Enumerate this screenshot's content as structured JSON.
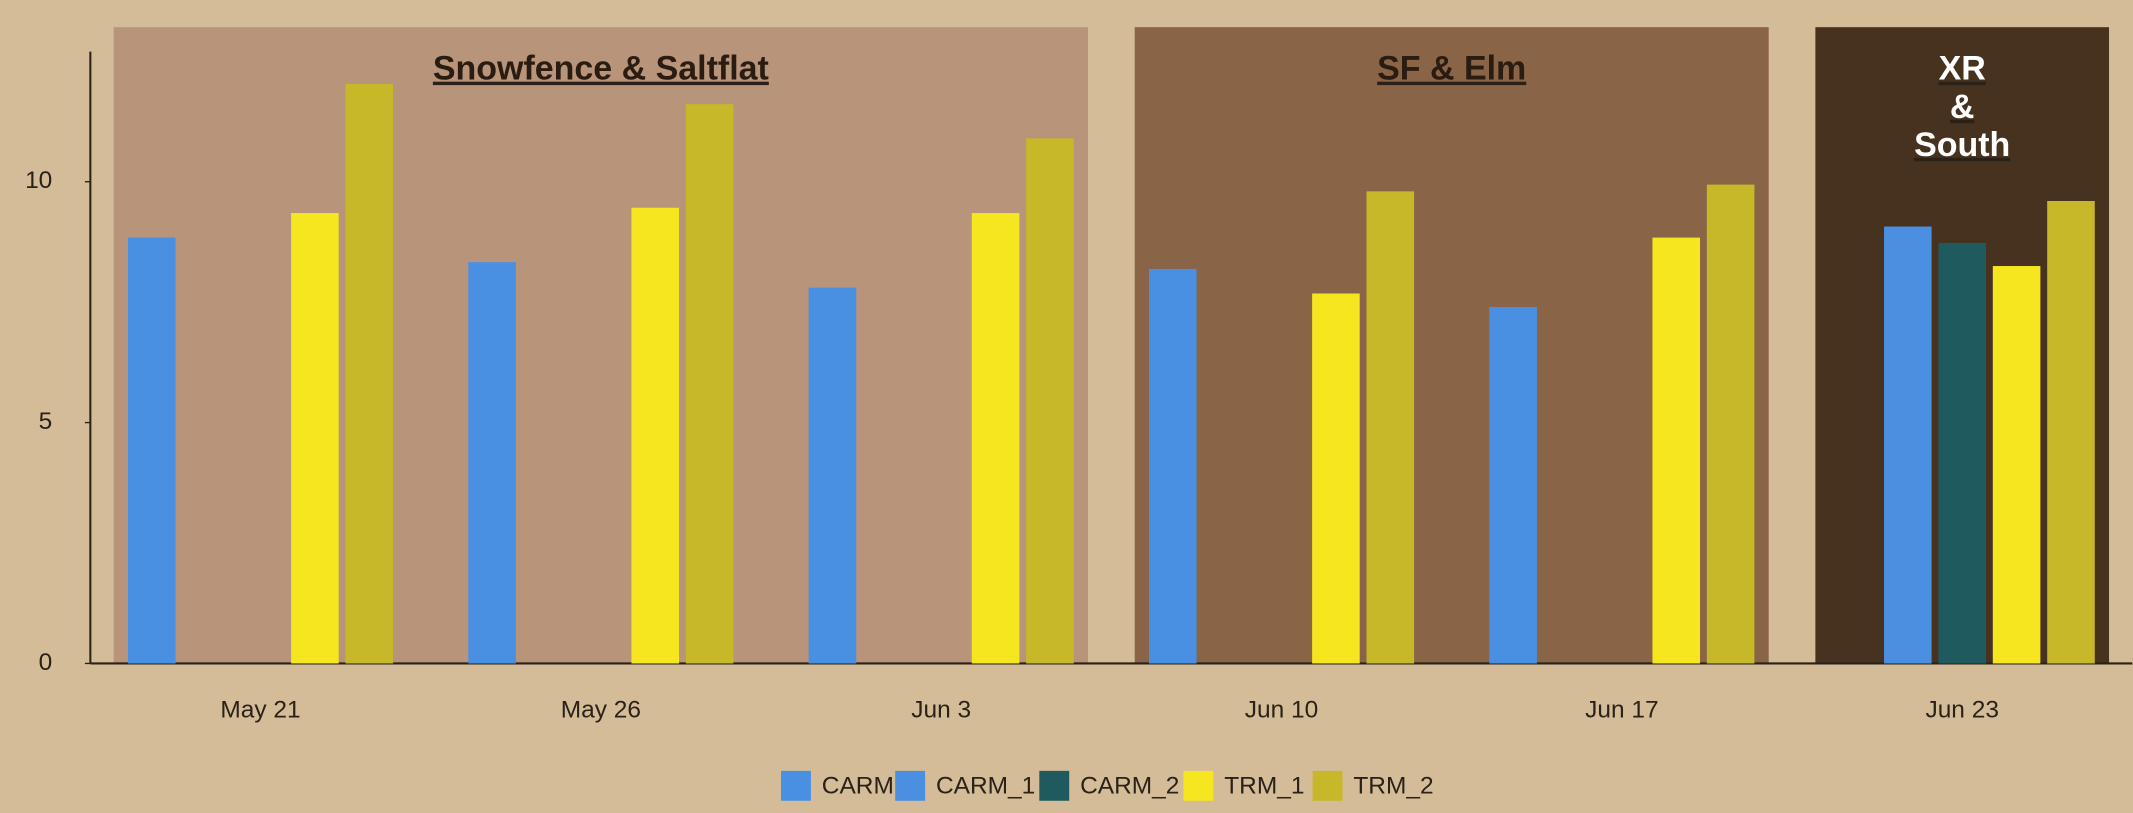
{
  "chart_data": {
    "type": "bar",
    "categories": [
      "May 21",
      "May 26",
      "Jun 3",
      "Jun 10",
      "Jun 17",
      "Jun 23"
    ],
    "series": [
      {
        "name": "CARM",
        "color": "#4a90e2",
        "values": [
          8.84,
          8.33,
          7.8,
          8.19,
          7.4,
          null
        ]
      },
      {
        "name": "CARM_1",
        "color": "#4b8fe0",
        "values": [
          null,
          null,
          null,
          null,
          null,
          9.07
        ]
      },
      {
        "name": "CARM_2",
        "color": "#1f5a5e",
        "values": [
          null,
          null,
          null,
          null,
          null,
          8.73
        ]
      },
      {
        "name": "TRM_1",
        "color": "#f6e61f",
        "values": [
          9.35,
          9.46,
          9.35,
          7.68,
          8.84,
          8.25
        ]
      },
      {
        "name": "TRM_2",
        "color": "#c7b82a",
        "values": [
          12.03,
          11.61,
          10.9,
          9.8,
          9.94,
          9.6
        ]
      }
    ],
    "regions": [
      {
        "label": [
          "Snowfence & Saltflat"
        ],
        "start": "May 21",
        "end": "Jun 3",
        "color": "#b8947a",
        "label_color": "#2a1c10"
      },
      {
        "label": [
          "SF & Elm"
        ],
        "start": "Jun 10",
        "end": "Jun 17",
        "color": "#8a6446",
        "label_color": "#2a1c10"
      },
      {
        "label": [
          "XR",
          "&",
          "South"
        ],
        "start": "Jun 23",
        "end": "Jun 23",
        "color": "#47311f",
        "label_color": "#ffffff"
      }
    ],
    "ylim": [
      0,
      12.7
    ],
    "yticks": [
      0,
      5,
      10
    ],
    "grid": false,
    "legend": "bottom"
  }
}
